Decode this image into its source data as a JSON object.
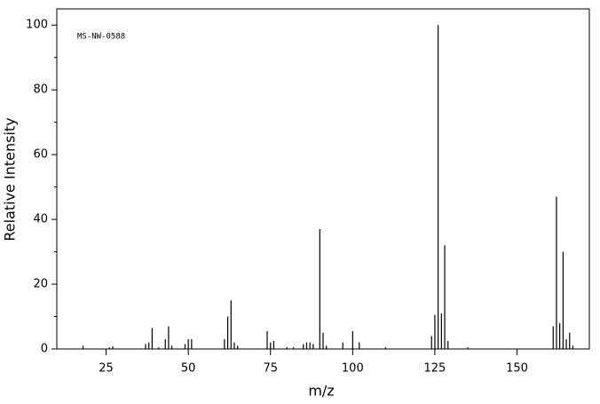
{
  "chart_data": {
    "type": "stem",
    "xlabel": "m/z",
    "ylabel": "Relative Intensity",
    "annotation": "MS-NW-0588",
    "x": [
      18,
      26,
      27,
      37,
      38,
      39,
      41,
      43,
      44,
      45,
      49,
      50,
      51,
      61,
      62,
      63,
      64,
      65,
      74,
      75,
      76,
      80,
      82,
      85,
      86,
      87,
      88,
      90,
      91,
      92,
      97,
      100,
      102,
      110,
      124,
      125,
      126,
      127,
      128,
      129,
      135,
      161,
      162,
      163,
      164,
      165,
      166,
      167
    ],
    "values": [
      1,
      0.5,
      0.8,
      1.5,
      2,
      6.5,
      0.5,
      3,
      7,
      1,
      1.5,
      3,
      3,
      3,
      10,
      15,
      2,
      1,
      5.5,
      2,
      2.5,
      0.5,
      0.5,
      1.5,
      2,
      2,
      1.5,
      37,
      5,
      1,
      2,
      5.5,
      2,
      0.5,
      4,
      10.5,
      100,
      11,
      32,
      2.5,
      0.5,
      7,
      47,
      8,
      30,
      3,
      5,
      1
    ],
    "color": "#000000",
    "xlim": [
      10,
      172
    ],
    "xticks": [
      25,
      50,
      75,
      100,
      125,
      150
    ],
    "ylim": [
      0,
      105
    ],
    "yticks": [
      0,
      20,
      40,
      60,
      80,
      100
    ],
    "yminorticks": [
      10,
      30,
      50,
      70,
      90
    ]
  }
}
